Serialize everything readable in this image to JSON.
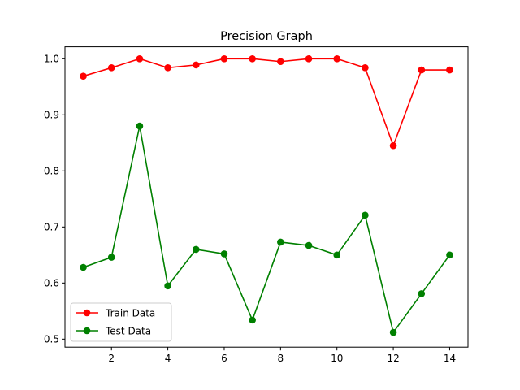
{
  "chart_data": {
    "type": "line",
    "title": "Precision Graph",
    "xlabel": "",
    "ylabel": "",
    "x": [
      1,
      2,
      3,
      4,
      5,
      6,
      7,
      8,
      9,
      10,
      11,
      12,
      13,
      14
    ],
    "xlim": [
      0.35,
      14.65
    ],
    "ylim": [
      0.4857,
      1.0213
    ],
    "xticks": [
      2,
      4,
      6,
      8,
      10,
      12,
      14
    ],
    "yticks": [
      0.5,
      0.6,
      0.7,
      0.8,
      0.9,
      1.0
    ],
    "ytick_labels": [
      "0.5",
      "0.6",
      "0.7",
      "0.8",
      "0.9",
      "1.0"
    ],
    "grid": false,
    "legend_position": "lower-left",
    "series": [
      {
        "name": "Train Data",
        "color": "#ff0000",
        "marker": "circle",
        "values": [
          0.969,
          0.984,
          1.0,
          0.984,
          0.989,
          1.0,
          1.0,
          0.995,
          1.0,
          1.0,
          0.984,
          0.845,
          0.98,
          0.98
        ]
      },
      {
        "name": "Test Data",
        "color": "#008000",
        "marker": "circle",
        "values": [
          0.628,
          0.646,
          0.88,
          0.595,
          0.66,
          0.652,
          0.534,
          0.673,
          0.667,
          0.65,
          0.721,
          0.512,
          0.581,
          0.65
        ]
      }
    ]
  }
}
